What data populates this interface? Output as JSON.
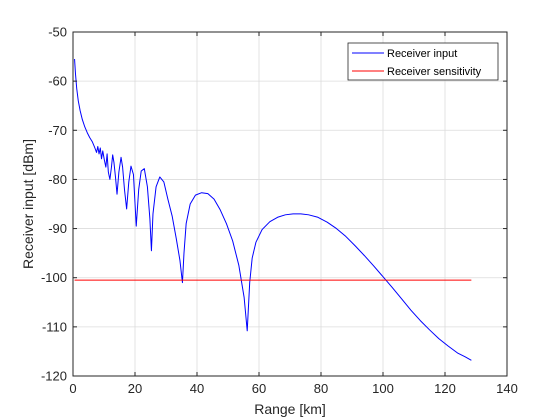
{
  "chart_data": {
    "type": "line",
    "title": "",
    "xlabel": "Range [km]",
    "ylabel": "Receiver input [dBm]",
    "xlim": [
      0,
      140
    ],
    "ylim": [
      -120,
      -50
    ],
    "xticks": [
      0,
      20,
      40,
      60,
      80,
      100,
      120,
      140
    ],
    "yticks": [
      -120,
      -110,
      -100,
      -90,
      -80,
      -70,
      -60,
      -50
    ],
    "xtick_labels": [
      "0",
      "20",
      "40",
      "60",
      "80",
      "100",
      "120",
      "140"
    ],
    "ytick_labels": [
      "-120",
      "-110",
      "-100",
      "-90",
      "-80",
      "-70",
      "-60",
      "-50"
    ],
    "grid": true,
    "legend_position": "top-right",
    "series": [
      {
        "name": "Receiver input",
        "color": "#0000ff",
        "x": [
          0.5,
          0.8,
          1.2,
          1.7,
          2.3,
          3.0,
          3.8,
          4.6,
          5.4,
          6.2,
          7.0,
          7.6,
          8.0,
          8.4,
          8.8,
          9.2,
          9.6,
          10.1,
          10.6,
          11.0,
          11.4,
          11.9,
          12.4,
          12.8,
          13.2,
          13.7,
          14.2,
          14.8,
          15.5,
          16.0,
          16.6,
          17.3,
          18.0,
          18.7,
          19.5,
          20.4,
          21.2,
          22.0,
          23.0,
          24.0,
          24.8,
          25.3,
          25.8,
          26.8,
          28.0,
          29.3,
          30.6,
          32.0,
          33.3,
          34.5,
          35.3,
          35.8,
          36.5,
          37.8,
          39.5,
          41.5,
          43.5,
          45.5,
          47.5,
          49.5,
          51.5,
          53.5,
          55.2,
          56.2,
          57.0,
          57.8,
          59.0,
          61.0,
          63.5,
          66.0,
          68.5,
          71.0,
          73.5,
          76.0,
          79.0,
          82.0,
          85.0,
          88.0,
          91.0,
          94.0,
          97.0,
          100.0,
          103.0,
          106.0,
          109.0,
          112.0,
          115.0,
          118.0,
          121.0,
          124.0,
          126.5,
          128.5
        ],
        "y": [
          -55.5,
          -58.5,
          -61.5,
          -64.0,
          -66.0,
          -67.8,
          -69.3,
          -70.5,
          -71.5,
          -72.3,
          -73.5,
          -74.5,
          -73.3,
          -74.8,
          -73.6,
          -75.8,
          -74.2,
          -76.0,
          -77.5,
          -74.8,
          -78.5,
          -80.0,
          -77.5,
          -75.0,
          -76.5,
          -79.5,
          -83.0,
          -78.5,
          -75.5,
          -77.5,
          -82.0,
          -86.0,
          -80.5,
          -77.3,
          -79.0,
          -89.5,
          -82.0,
          -78.3,
          -77.8,
          -81.5,
          -88.0,
          -94.5,
          -87.0,
          -81.5,
          -79.5,
          -80.5,
          -84.0,
          -87.5,
          -92.0,
          -96.5,
          -101.0,
          -95.0,
          -89.0,
          -85.0,
          -83.2,
          -82.7,
          -82.9,
          -84.0,
          -86.2,
          -89.0,
          -92.5,
          -97.5,
          -104.0,
          -110.8,
          -101.0,
          -96.0,
          -92.8,
          -90.2,
          -88.6,
          -87.7,
          -87.2,
          -87.0,
          -87.0,
          -87.2,
          -87.7,
          -88.7,
          -90.0,
          -91.6,
          -93.5,
          -95.5,
          -97.6,
          -99.8,
          -102.0,
          -104.3,
          -106.6,
          -108.7,
          -110.6,
          -112.4,
          -113.9,
          -115.3,
          -116.1,
          -116.8
        ]
      },
      {
        "name": "Receiver sensitivity",
        "color": "#ff0000",
        "x": [
          0.5,
          128.5
        ],
        "y": [
          -100.5,
          -100.5
        ]
      }
    ]
  }
}
